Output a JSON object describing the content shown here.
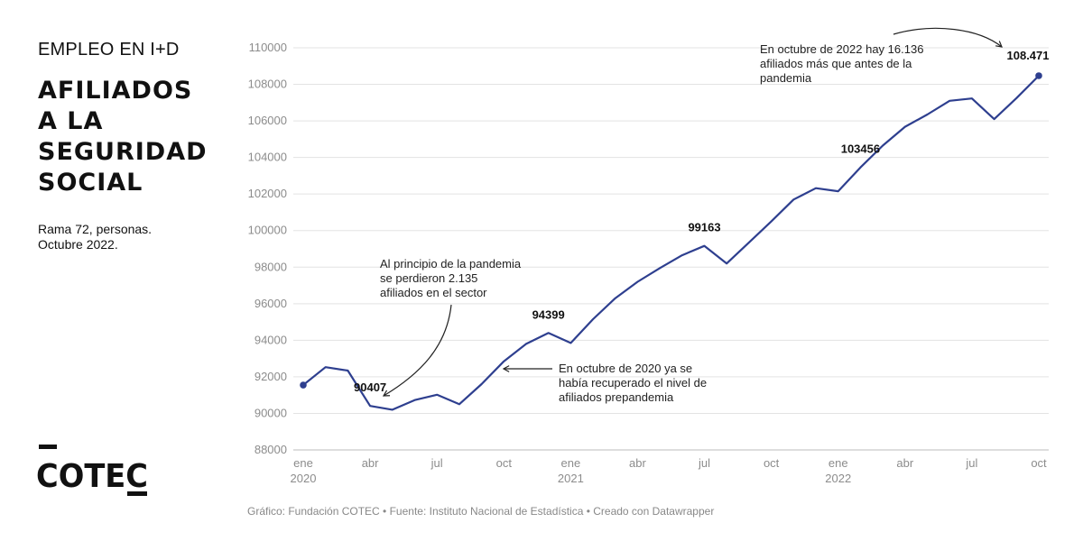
{
  "header": {
    "kicker": "EMPLEO EN I+D",
    "title_lines": [
      "AFILIADOS",
      "A LA",
      "SEGURIDAD",
      "SOCIAL"
    ],
    "subtitle_lines": [
      "Rama 72, personas.",
      "Octubre 2022."
    ]
  },
  "logo": {
    "text": "COTEC"
  },
  "footer": "Gráfico: Fundación COTEC • Fuente: Instituto Nacional de Estadística • Creado con Datawrapper",
  "chart_data": {
    "type": "line",
    "title": "",
    "xlabel": "",
    "ylabel": "",
    "ylim": [
      88000,
      110000
    ],
    "y_ticks": [
      "110000",
      "108000",
      "106000",
      "104000",
      "102000",
      "100000",
      "98000",
      "96000",
      "94000",
      "92000",
      "90000",
      "88000"
    ],
    "x": [
      "2020-01",
      "2020-02",
      "2020-03",
      "2020-04",
      "2020-05",
      "2020-06",
      "2020-07",
      "2020-08",
      "2020-09",
      "2020-10",
      "2020-11",
      "2020-12",
      "2021-01",
      "2021-02",
      "2021-03",
      "2021-04",
      "2021-05",
      "2021-06",
      "2021-07",
      "2021-08",
      "2021-09",
      "2021-10",
      "2021-11",
      "2021-12",
      "2022-01",
      "2022-02",
      "2022-03",
      "2022-04",
      "2022-05",
      "2022-06",
      "2022-07",
      "2022-08",
      "2022-09",
      "2022-10"
    ],
    "x_tick_labels": [
      {
        "x": "2020-01",
        "label": "ene",
        "year": "2020"
      },
      {
        "x": "2020-04",
        "label": "abr",
        "year": ""
      },
      {
        "x": "2020-07",
        "label": "jul",
        "year": ""
      },
      {
        "x": "2020-10",
        "label": "oct",
        "year": ""
      },
      {
        "x": "2021-01",
        "label": "ene",
        "year": "2021"
      },
      {
        "x": "2021-04",
        "label": "abr",
        "year": ""
      },
      {
        "x": "2021-07",
        "label": "jul",
        "year": ""
      },
      {
        "x": "2021-10",
        "label": "oct",
        "year": ""
      },
      {
        "x": "2022-01",
        "label": "ene",
        "year": "2022"
      },
      {
        "x": "2022-04",
        "label": "abr",
        "year": ""
      },
      {
        "x": "2022-07",
        "label": "jul",
        "year": ""
      },
      {
        "x": "2022-10",
        "label": "oct",
        "year": ""
      }
    ],
    "series": [
      {
        "color": "#2e3f8f",
        "values": [
          91550,
          92530,
          92340,
          90407,
          90200,
          90730,
          91020,
          90500,
          91600,
          92850,
          93800,
          94399,
          93850,
          95150,
          96300,
          97200,
          97950,
          98650,
          99163,
          98200,
          99350,
          100500,
          101700,
          102320,
          102150,
          103456,
          104650,
          105680,
          106350,
          107100,
          107230,
          106100,
          107250,
          108471
        ]
      }
    ],
    "point_labels": [
      {
        "x": "2020-04",
        "text": "90407"
      },
      {
        "x": "2020-12",
        "text": "94399"
      },
      {
        "x": "2021-07",
        "text": "99163"
      },
      {
        "x": "2022-02",
        "text": "103456"
      },
      {
        "x": "2022-10",
        "text": "108.471"
      }
    ],
    "annotations": [
      {
        "lines": [
          "Al principio de la pandemia",
          "se perdieron 2.135",
          "afiliados en el sector"
        ]
      },
      {
        "lines": [
          "En octubre  de  2020 ya se",
          "había recuperado el nivel de",
          "afiliados prepandemia"
        ]
      },
      {
        "lines": [
          "En octubre de 2022 hay 16.136",
          "afiliados más que antes de la",
          "pandemia"
        ]
      }
    ]
  }
}
